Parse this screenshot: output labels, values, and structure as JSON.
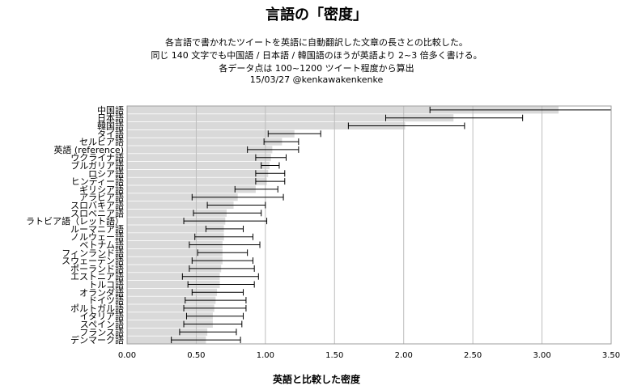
{
  "chart_data": {
    "type": "bar",
    "orientation": "horizontal",
    "title": "言語の「密度」",
    "subtitle": [
      "各言語で書かれたツイートを英語に自動翻訳した文章の長さとの比較した。",
      "同じ 140 文字でも中国語 / 日本語 / 韓国語のほうが英語より 2~3 倍多く書ける。",
      "各データ点は 100~1200 ツイート程度から算出",
      "15/03/27 @kenkawakenkenke"
    ],
    "xlabel": "英語と比較した密度",
    "ylabel": "",
    "xlim": [
      0,
      3.5
    ],
    "xticks": [
      "0.00",
      "0.50",
      "1.00",
      "1.50",
      "2.00",
      "2.50",
      "3.00",
      "3.50"
    ],
    "grid": true,
    "bar_color": "#d9d9d9",
    "categories": [
      "中国語",
      "日本語",
      "韓国語",
      "タイ語",
      "セルビア語",
      "英語 (reference)",
      "ウクライナ語",
      "ブルガリア語",
      "ロシア語",
      "ヒンディー語",
      "ギリシア語",
      "アラビア語",
      "スロバキア語",
      "スロベニア語",
      "ラトビア語（レット語）",
      "ルーマニア語",
      "ノルウェー語",
      "ベトナム語",
      "フィンランド語",
      "スウェーデン語",
      "ポーランド語",
      "エストニア語",
      "トルコ語",
      "オランダ語",
      "ドイツ語",
      "ポルトガル語",
      "イタリア語",
      "スペイン語",
      "フランス語",
      "デンマーク語"
    ],
    "values": [
      3.12,
      2.36,
      2.01,
      1.21,
      1.12,
      1.05,
      1.04,
      1.03,
      1.02,
      1.01,
      0.93,
      0.8,
      0.77,
      0.72,
      0.71,
      0.7,
      0.7,
      0.69,
      0.69,
      0.69,
      0.68,
      0.67,
      0.67,
      0.65,
      0.64,
      0.63,
      0.62,
      0.62,
      0.58,
      0.57
    ],
    "err_low": [
      2.19,
      1.87,
      1.6,
      1.02,
      0.99,
      0.87,
      0.93,
      0.97,
      0.93,
      0.93,
      0.78,
      0.47,
      0.58,
      0.48,
      0.41,
      0.57,
      0.49,
      0.45,
      0.51,
      0.47,
      0.45,
      0.4,
      0.44,
      0.47,
      0.42,
      0.41,
      0.43,
      0.41,
      0.38,
      0.32
    ],
    "err_high": [
      3.5,
      2.86,
      2.44,
      1.4,
      1.24,
      1.24,
      1.15,
      1.1,
      1.14,
      1.14,
      1.09,
      1.13,
      1.0,
      0.97,
      1.01,
      0.84,
      0.91,
      0.96,
      0.87,
      0.91,
      0.92,
      0.95,
      0.92,
      0.84,
      0.86,
      0.86,
      0.84,
      0.83,
      0.79,
      0.82
    ]
  }
}
